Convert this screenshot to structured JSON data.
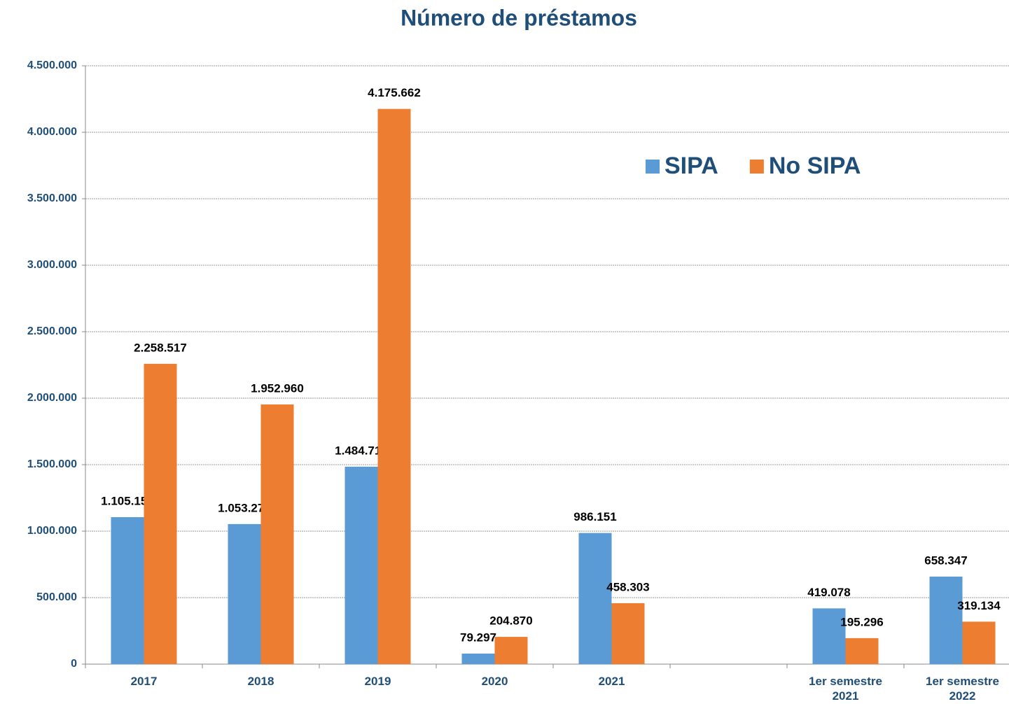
{
  "chart_data": {
    "type": "bar",
    "title": "Número de préstamos",
    "categories": [
      "2017",
      "2018",
      "2019",
      "2020",
      "2021",
      null,
      "1er semestre 2021",
      "1er semestre 2022"
    ],
    "series": [
      {
        "name": "SIPA",
        "color": "#5b9bd5",
        "values": [
          1105152,
          1053278,
          1484716,
          79297,
          986151,
          null,
          419078,
          658347
        ],
        "value_labels": [
          "1.105.152",
          "1.053.278",
          "1.484.716",
          "79.297",
          "986.151",
          null,
          "419.078",
          "658.347"
        ]
      },
      {
        "name": "No SIPA",
        "color": "#ed7d31",
        "values": [
          2258517,
          1952960,
          4175662,
          204870,
          458303,
          null,
          195296,
          319134
        ],
        "value_labels": [
          "2.258.517",
          "1.952.960",
          "4.175.662",
          "204.870",
          "458.303",
          null,
          "195.296",
          "319.134"
        ]
      }
    ],
    "ylim": [
      0,
      4500000
    ],
    "yticks": [
      0,
      {
        "value": 500000,
        "label": "500.000"
      },
      {
        "value": 1000000,
        "label": "1.000.000"
      },
      {
        "value": 1500000,
        "label": "1.500.000"
      },
      {
        "value": 2000000,
        "label": "2.000.000"
      },
      {
        "value": 2500000,
        "label": "2.500.000"
      },
      {
        "value": 3000000,
        "label": "3.000.000"
      },
      {
        "value": 3500000,
        "label": "3.500.000"
      },
      {
        "value": 4000000,
        "label": "4.000.000"
      },
      {
        "value": 4500000,
        "label": "4.500.000"
      }
    ],
    "grid": true,
    "legend": "top-right"
  }
}
